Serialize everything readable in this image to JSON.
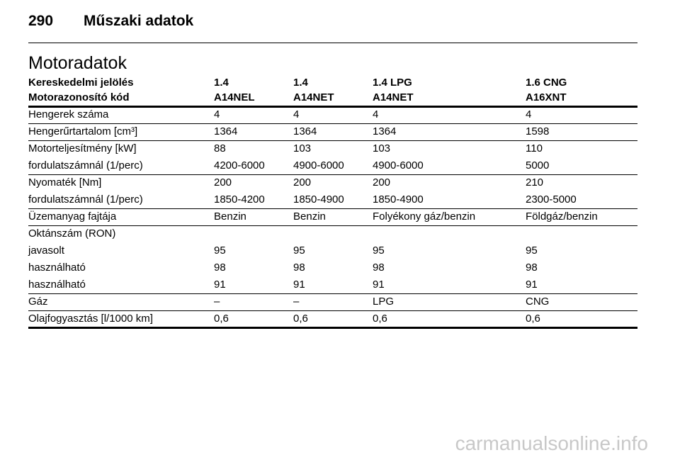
{
  "header": {
    "page_number": "290",
    "title": "Műszaki adatok"
  },
  "section_title": "Motoradatok",
  "table": {
    "header_rows": [
      [
        "Kereskedelmi jelölés",
        "1.4",
        "1.4",
        "1.4 LPG",
        "1.6 CNG"
      ],
      [
        "Motorazonosító kód",
        "A14NEL",
        "A14NET",
        "A14NET",
        "A16XNT"
      ]
    ],
    "groups": [
      [
        [
          "Hengerek száma",
          "4",
          "4",
          "4",
          "4"
        ]
      ],
      [
        [
          "Hengerűrtartalom [cm³]",
          "1364",
          "1364",
          "1364",
          "1598"
        ]
      ],
      [
        [
          "Motorteljesítmény [kW]",
          "88",
          "103",
          "103",
          "110"
        ],
        [
          "fordulatszámnál (1/perc)",
          "4200-6000",
          "4900-6000",
          "4900-6000",
          "5000"
        ]
      ],
      [
        [
          "Nyomaték [Nm]",
          "200",
          "200",
          "200",
          "210"
        ],
        [
          "fordulatszámnál (1/perc)",
          "1850-4200",
          "1850-4900",
          "1850-4900",
          "2300-5000"
        ]
      ],
      [
        [
          "Üzemanyag fajtája",
          "Benzin",
          "Benzin",
          "Folyékony gáz/benzin",
          "Földgáz/benzin"
        ]
      ],
      [
        [
          "Oktánszám (RON)"
        ],
        [
          "javasolt",
          "95",
          "95",
          "95",
          "95"
        ],
        [
          "használható",
          "98",
          "98",
          "98",
          "98"
        ],
        [
          "használható",
          "91",
          "91",
          "91",
          "91"
        ]
      ],
      [
        [
          "Gáz",
          "–",
          "–",
          "LPG",
          "CNG"
        ]
      ],
      [
        [
          "Olajfogyasztás [l/1000 km]",
          "0,6",
          "0,6",
          "0,6",
          "0,6"
        ]
      ]
    ]
  },
  "watermark": "carmanualsonline.info"
}
